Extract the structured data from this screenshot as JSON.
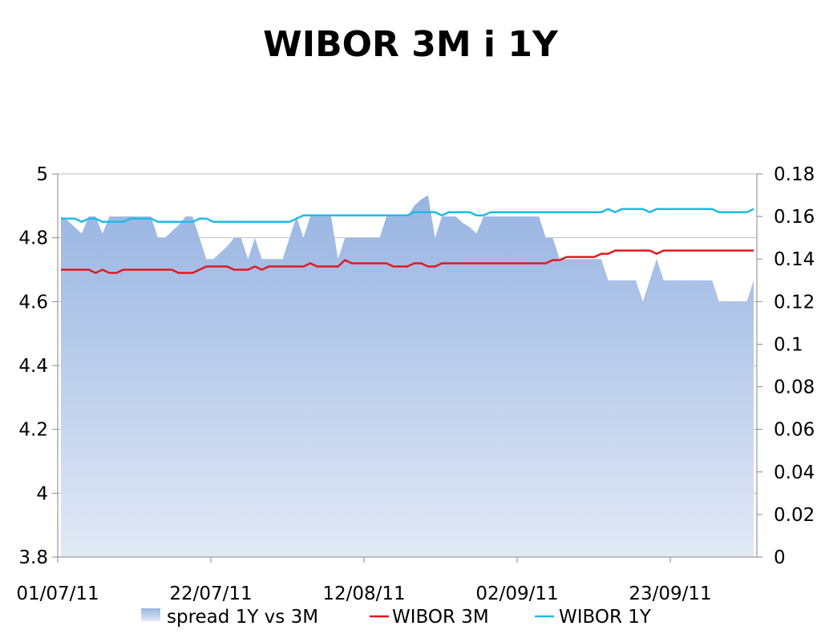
{
  "chart_data": {
    "type": "line",
    "title": "WIBOR 3M i 1Y",
    "x_tick_labels": [
      "01/07/11",
      "22/07/11",
      "12/08/11",
      "02/09/11",
      "23/09/11"
    ],
    "y_left": {
      "min": 3.8,
      "max": 5,
      "ticks": [
        "3.8",
        "4",
        "4.2",
        "4.4",
        "4.6",
        "4.8",
        "5"
      ]
    },
    "y_right": {
      "min": 0,
      "max": 0.18,
      "ticks": [
        "0",
        "0.02",
        "0.04",
        "0.06",
        "0.08",
        "0.1",
        "0.12",
        "0.14",
        "0.16",
        "0.18"
      ]
    },
    "grid": "horizontal",
    "legend_position": "bottom",
    "series": [
      {
        "name": "spread 1Y vs 3M",
        "type": "area",
        "axis": "right",
        "color": "#9bb7e3",
        "values": [
          0.16,
          0.158,
          0.155,
          0.152,
          0.16,
          0.16,
          0.152,
          0.16,
          0.16,
          0.16,
          0.16,
          0.16,
          0.16,
          0.16,
          0.15,
          0.15,
          0.153,
          0.156,
          0.16,
          0.16,
          0.15,
          0.14,
          0.14,
          0.143,
          0.146,
          0.15,
          0.15,
          0.14,
          0.15,
          0.14,
          0.14,
          0.14,
          0.14,
          0.15,
          0.16,
          0.15,
          0.16,
          0.16,
          0.16,
          0.16,
          0.14,
          0.15,
          0.15,
          0.15,
          0.15,
          0.15,
          0.15,
          0.16,
          0.16,
          0.16,
          0.16,
          0.165,
          0.168,
          0.17,
          0.15,
          0.16,
          0.16,
          0.16,
          0.157,
          0.155,
          0.152,
          0.16,
          0.16,
          0.16,
          0.16,
          0.16,
          0.16,
          0.16,
          0.16,
          0.16,
          0.15,
          0.15,
          0.14,
          0.14,
          0.14,
          0.14,
          0.14,
          0.14,
          0.14,
          0.13,
          0.13,
          0.13,
          0.13,
          0.13,
          0.12,
          0.13,
          0.14,
          0.13,
          0.13,
          0.13,
          0.13,
          0.13,
          0.13,
          0.13,
          0.13,
          0.12,
          0.12,
          0.12,
          0.12,
          0.12,
          0.13
        ]
      },
      {
        "name": "WIBOR 3M",
        "type": "line",
        "axis": "left",
        "color": "#e0191e",
        "values": [
          4.7,
          4.7,
          4.7,
          4.7,
          4.7,
          4.69,
          4.7,
          4.69,
          4.69,
          4.7,
          4.7,
          4.7,
          4.7,
          4.7,
          4.7,
          4.7,
          4.7,
          4.69,
          4.69,
          4.69,
          4.7,
          4.71,
          4.71,
          4.71,
          4.71,
          4.7,
          4.7,
          4.7,
          4.71,
          4.7,
          4.71,
          4.71,
          4.71,
          4.71,
          4.71,
          4.71,
          4.72,
          4.71,
          4.71,
          4.71,
          4.71,
          4.73,
          4.72,
          4.72,
          4.72,
          4.72,
          4.72,
          4.72,
          4.71,
          4.71,
          4.71,
          4.72,
          4.72,
          4.71,
          4.71,
          4.72,
          4.72,
          4.72,
          4.72,
          4.72,
          4.72,
          4.72,
          4.72,
          4.72,
          4.72,
          4.72,
          4.72,
          4.72,
          4.72,
          4.72,
          4.72,
          4.73,
          4.73,
          4.74,
          4.74,
          4.74,
          4.74,
          4.74,
          4.75,
          4.75,
          4.76,
          4.76,
          4.76,
          4.76,
          4.76,
          4.76,
          4.75,
          4.76,
          4.76,
          4.76,
          4.76,
          4.76,
          4.76,
          4.76,
          4.76,
          4.76,
          4.76,
          4.76,
          4.76,
          4.76,
          4.76
        ]
      },
      {
        "name": "WIBOR 1Y",
        "type": "line",
        "axis": "left",
        "color": "#1ebbe5",
        "values": [
          4.86,
          4.86,
          4.86,
          4.85,
          4.86,
          4.86,
          4.85,
          4.85,
          4.85,
          4.85,
          4.86,
          4.86,
          4.86,
          4.86,
          4.85,
          4.85,
          4.85,
          4.85,
          4.85,
          4.85,
          4.86,
          4.86,
          4.85,
          4.85,
          4.85,
          4.85,
          4.85,
          4.85,
          4.85,
          4.85,
          4.85,
          4.85,
          4.85,
          4.85,
          4.86,
          4.87,
          4.87,
          4.87,
          4.87,
          4.87,
          4.87,
          4.87,
          4.87,
          4.87,
          4.87,
          4.87,
          4.87,
          4.87,
          4.87,
          4.87,
          4.87,
          4.88,
          4.88,
          4.88,
          4.88,
          4.87,
          4.88,
          4.88,
          4.88,
          4.88,
          4.87,
          4.87,
          4.88,
          4.88,
          4.88,
          4.88,
          4.88,
          4.88,
          4.88,
          4.88,
          4.88,
          4.88,
          4.88,
          4.88,
          4.88,
          4.88,
          4.88,
          4.88,
          4.88,
          4.89,
          4.88,
          4.89,
          4.89,
          4.89,
          4.89,
          4.88,
          4.89,
          4.89,
          4.89,
          4.89,
          4.89,
          4.89,
          4.89,
          4.89,
          4.89,
          4.88,
          4.88,
          4.88,
          4.88,
          4.88,
          4.89
        ]
      }
    ]
  }
}
